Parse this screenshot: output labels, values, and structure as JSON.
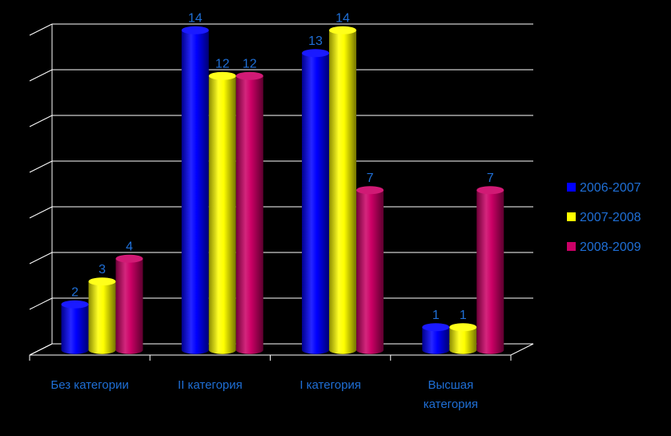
{
  "chart_data": {
    "type": "bar",
    "title": "",
    "xlabel": "",
    "ylabel": "",
    "ylim": [
      0,
      14
    ],
    "categories": [
      "Без категории",
      "II категория",
      "I категория",
      "Высшая категория"
    ],
    "series": [
      {
        "name": "2006-2007",
        "values": [
          2,
          14,
          13,
          1
        ],
        "color": "#0000FF"
      },
      {
        "name": "2007-2008",
        "values": [
          3,
          12,
          14,
          1
        ],
        "color": "#FFFF00"
      },
      {
        "name": "2008-2009",
        "values": [
          4,
          12,
          7,
          7
        ],
        "color": "#CC0066"
      }
    ],
    "grid": true,
    "legend": "right",
    "label_color": "#1F6FD6",
    "axis_color": "#FFFFFF"
  }
}
